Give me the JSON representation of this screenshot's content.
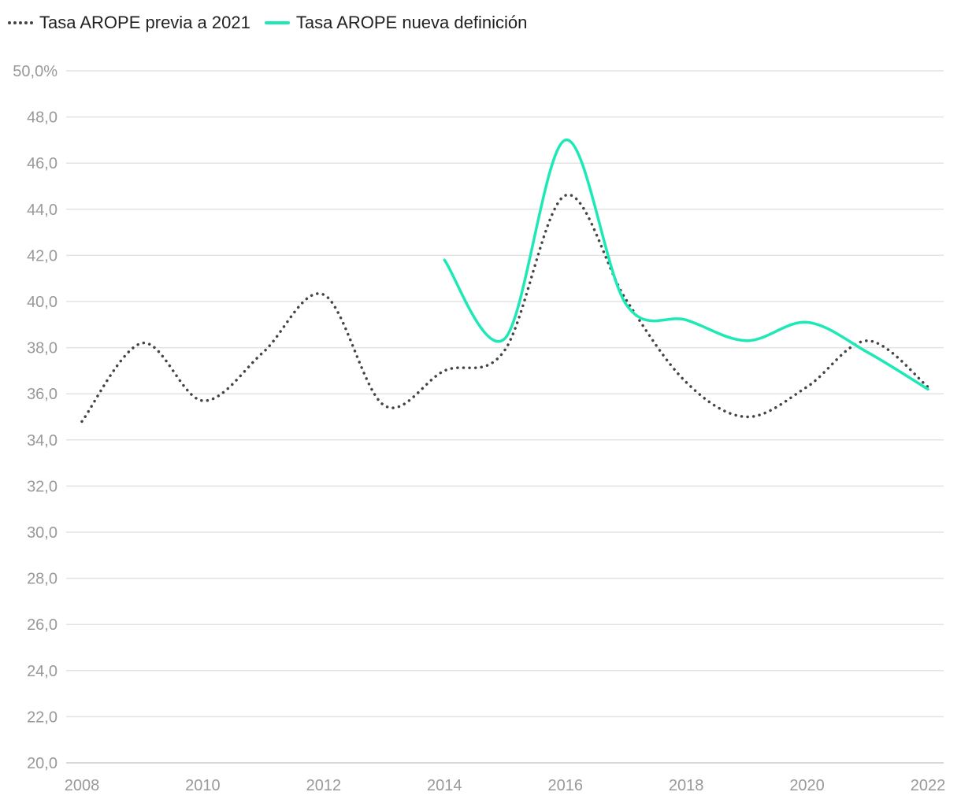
{
  "chart_data": {
    "type": "line",
    "title": "",
    "xlabel": "",
    "ylabel": "",
    "x": [
      2008,
      2009,
      2010,
      2011,
      2012,
      2013,
      2014,
      2015,
      2016,
      2017,
      2018,
      2019,
      2020,
      2021,
      2022
    ],
    "x_ticks": [
      "2008",
      "2010",
      "2012",
      "2014",
      "2016",
      "2018",
      "2020",
      "2022"
    ],
    "y_ticks": [
      "20,0",
      "22,0",
      "24,0",
      "26,0",
      "28,0",
      "30,0",
      "32,0",
      "34,0",
      "36,0",
      "38,0",
      "40,0",
      "42,0",
      "44,0",
      "46,0",
      "48,0",
      "50,0%"
    ],
    "xlim": [
      2008,
      2022
    ],
    "ylim": [
      20,
      50
    ],
    "grid": true,
    "legend_position": "top-left",
    "series": [
      {
        "name": "Tasa AROPE previa a 2021",
        "style": "dotted",
        "color": "#444444",
        "x": [
          2008,
          2009,
          2010,
          2011,
          2012,
          2013,
          2014,
          2015,
          2016,
          2017,
          2018,
          2019,
          2020,
          2021,
          2022
        ],
        "values": [
          34.8,
          38.2,
          35.7,
          37.8,
          40.3,
          35.5,
          37.0,
          37.9,
          44.6,
          40.1,
          36.5,
          35.0,
          36.3,
          38.3,
          36.3
        ]
      },
      {
        "name": "Tasa AROPE nueva definición",
        "style": "solid",
        "color": "#1de9b6",
        "x": [
          2014,
          2015,
          2016,
          2017,
          2018,
          2019,
          2020,
          2021,
          2022
        ],
        "values": [
          41.8,
          38.4,
          47.0,
          39.9,
          39.2,
          38.3,
          39.1,
          37.8,
          36.2
        ]
      }
    ]
  }
}
